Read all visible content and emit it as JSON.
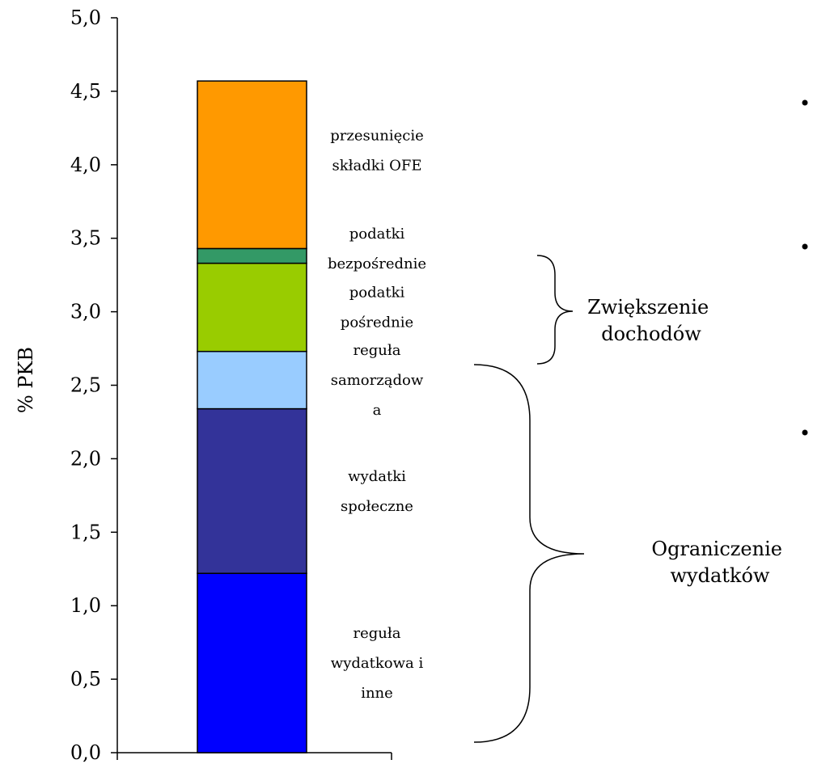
{
  "chart_data": {
    "type": "bar",
    "stacked": true,
    "ylabel": "% PKB",
    "ylim": [
      0,
      5.0
    ],
    "yticks": [
      "0,0",
      "0,5",
      "1,0",
      "1,5",
      "2,0",
      "2,5",
      "3,0",
      "3,5",
      "4,0",
      "4,5",
      "5,0"
    ],
    "grid": false,
    "segments": [
      {
        "lines": [
          "reguła",
          "wydatkowa i",
          "inne"
        ],
        "value": 1.22,
        "color": "#0000ff"
      },
      {
        "lines": [
          "wydatki",
          "społeczne"
        ],
        "value": 1.12,
        "color": "#333399"
      },
      {
        "lines": [
          "reguła",
          "samorządow",
          "a"
        ],
        "value": 0.39,
        "color": "#99ccff"
      },
      {
        "lines": [
          "podatki",
          "pośrednie"
        ],
        "value": 0.6,
        "color": "#99cc00"
      },
      {
        "lines": [
          "podatki",
          "bezpośrednie"
        ],
        "value": 0.1,
        "color": "#339966"
      },
      {
        "lines": [
          "przesunięcie",
          "składki OFE"
        ],
        "value": 1.14,
        "color": "#ff9900"
      }
    ],
    "groups": [
      {
        "lines": [
          "Zwiększenie",
          "dochodów"
        ]
      },
      {
        "lines": [
          "Ograniczenie",
          "wydatków"
        ]
      }
    ]
  }
}
